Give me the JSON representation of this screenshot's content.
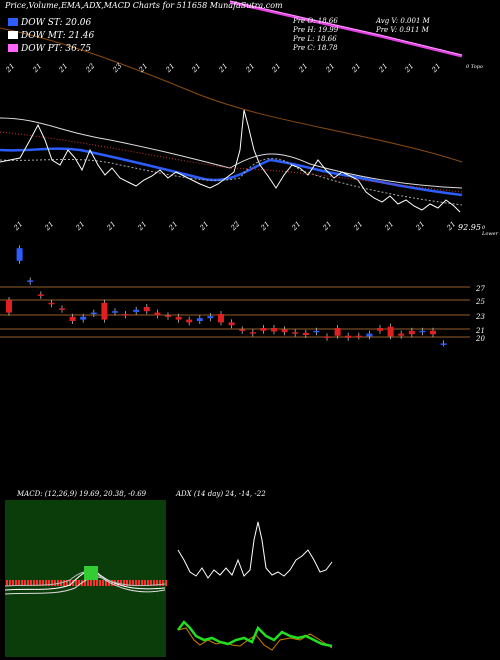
{
  "header": {
    "title": "Price,Volume,EMA,ADX,MACD Charts for 511658 MunafaSutra.com"
  },
  "legend": [
    {
      "label": "DOW ST: 20.06",
      "color": "#2c5dff"
    },
    {
      "label": "DOW MT: 21.46",
      "color": "#ffffff"
    },
    {
      "label": "DOW PT: 36.75",
      "color": "#ff66ff"
    }
  ],
  "prev_values": {
    "open": "Pre   O: 18.66",
    "high": "Pre   H: 19.99",
    "low": "Pre   L: 18.66",
    "close": "Pre   C: 18.78",
    "avg_vol": "Avg V: 0.001 M",
    "vol": "Pre   V: 0.911 M"
  },
  "axis_labels": {
    "top_right": "0 Topo",
    "price_low": "92.95",
    "lower": "0 Lower",
    "levels": [
      "27",
      "25",
      "23",
      "21",
      "20"
    ]
  },
  "top_dates": [
    "21",
    "21",
    "21",
    "22",
    "23",
    "21",
    "21",
    "21",
    "21",
    "21",
    "21",
    "21",
    "21",
    "21",
    "21",
    "21",
    "21"
  ],
  "bottom_dates": [
    "21",
    "21",
    "21",
    "21",
    "21",
    "21",
    "21",
    "22",
    "21",
    "21",
    "21",
    "21",
    "21",
    "21",
    "21"
  ],
  "macd_panel": {
    "title": "MACD: (12,26,9) 19.69, 20.38, -0.69"
  },
  "adx_panel": {
    "title": "ADX (14 day) 24, -14, -22"
  },
  "chart_data": {
    "type": "candlestick",
    "title": "Price,Volume,EMA,ADX,MACD Charts for 511658 MunafaSutra.com",
    "indicators": {
      "dow_short_term": 20.06,
      "dow_mid_term": 21.46,
      "dow_primary_term": 36.75,
      "macd": [
        19.69,
        20.38,
        -0.69
      ],
      "adx": [
        24,
        -14,
        -22
      ]
    },
    "previous_bar": {
      "open": 18.66,
      "high": 19.99,
      "low": 18.66,
      "close": 18.78,
      "volume_m": 0.911,
      "avg_volume_m": 0.001
    },
    "price_levels": [
      27,
      25,
      23,
      21,
      20
    ],
    "candles": [
      {
        "o": 25.0,
        "c": 23.2
      },
      {
        "o": 30.6,
        "c": 32.4
      },
      {
        "o": 27.6,
        "c": 27.8
      },
      {
        "o": 25.8,
        "c": 25.6
      },
      {
        "o": 24.6,
        "c": 24.4
      },
      {
        "o": 23.8,
        "c": 23.6
      },
      {
        "o": 22.6,
        "c": 22.0
      },
      {
        "o": 22.2,
        "c": 22.6
      },
      {
        "o": 23.0,
        "c": 23.2
      },
      {
        "o": 24.6,
        "c": 22.2
      },
      {
        "o": 23.2,
        "c": 23.4
      },
      {
        "o": 23.0,
        "c": 22.8
      },
      {
        "o": 23.3,
        "c": 23.6
      },
      {
        "o": 24.0,
        "c": 23.4
      },
      {
        "o": 23.2,
        "c": 22.8
      },
      {
        "o": 22.8,
        "c": 22.6
      },
      {
        "o": 22.6,
        "c": 22.2
      },
      {
        "o": 22.2,
        "c": 21.8
      },
      {
        "o": 22.0,
        "c": 22.4
      },
      {
        "o": 22.4,
        "c": 22.7
      },
      {
        "o": 23.0,
        "c": 21.8
      },
      {
        "o": 21.8,
        "c": 21.4
      },
      {
        "o": 20.8,
        "c": 20.6
      },
      {
        "o": 20.4,
        "c": 20.2
      },
      {
        "o": 21.0,
        "c": 20.6
      },
      {
        "o": 21.0,
        "c": 20.5
      },
      {
        "o": 20.8,
        "c": 20.4
      },
      {
        "o": 20.4,
        "c": 20.2
      },
      {
        "o": 20.3,
        "c": 20.0
      },
      {
        "o": 20.4,
        "c": 20.6
      },
      {
        "o": 19.8,
        "c": 19.6
      },
      {
        "o": 21.0,
        "c": 19.9
      },
      {
        "o": 19.9,
        "c": 19.6
      },
      {
        "o": 19.9,
        "c": 19.8
      },
      {
        "o": 19.8,
        "c": 20.2
      },
      {
        "o": 21.0,
        "c": 20.6
      },
      {
        "o": 21.2,
        "c": 19.8
      },
      {
        "o": 20.2,
        "c": 19.9
      },
      {
        "o": 20.6,
        "c": 20.1
      },
      {
        "o": 20.4,
        "c": 20.6
      },
      {
        "o": 20.6,
        "c": 20.1
      },
      {
        "o": 18.8,
        "c": 18.8
      }
    ],
    "xlabel": "",
    "ylabel": ""
  }
}
